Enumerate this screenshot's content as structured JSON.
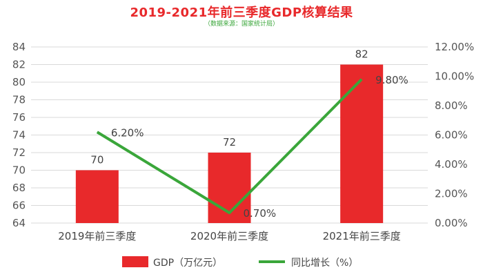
{
  "chart_data": {
    "type": "bar",
    "title": "2019-2021年前三季度GDP核算结果",
    "subtitle": "（数据来源：国家统计局）",
    "categories": [
      "2019年前三季度",
      "2020年前三季度",
      "2021年前三季度"
    ],
    "series": [
      {
        "name": "GDP（万亿元）",
        "type": "bar",
        "axis": "left",
        "values": [
          70,
          72,
          82
        ],
        "labels": [
          "70",
          "72",
          "82"
        ],
        "color": "#e8292b"
      },
      {
        "name": "同比增长（%）",
        "type": "line",
        "axis": "right",
        "values": [
          6.2,
          0.7,
          9.8
        ],
        "labels": [
          "6.20%",
          "0.70%",
          "9.80%"
        ],
        "color": "#3aa63a"
      }
    ],
    "y_left": {
      "min": 64,
      "max": 84,
      "step": 2,
      "ticks": [
        "64",
        "66",
        "68",
        "70",
        "72",
        "74",
        "76",
        "78",
        "80",
        "82",
        "84"
      ]
    },
    "y_right": {
      "min": 0,
      "max": 12,
      "step": 2,
      "ticks": [
        "0.00%",
        "2.00%",
        "4.00%",
        "6.00%",
        "8.00%",
        "10.00%",
        "12.00%"
      ]
    },
    "grid": true,
    "legend_position": "bottom"
  },
  "colors": {
    "bar": "#e8292b",
    "line": "#3aa63a",
    "title": "#e8292b",
    "subtitle": "#3aa63a"
  }
}
